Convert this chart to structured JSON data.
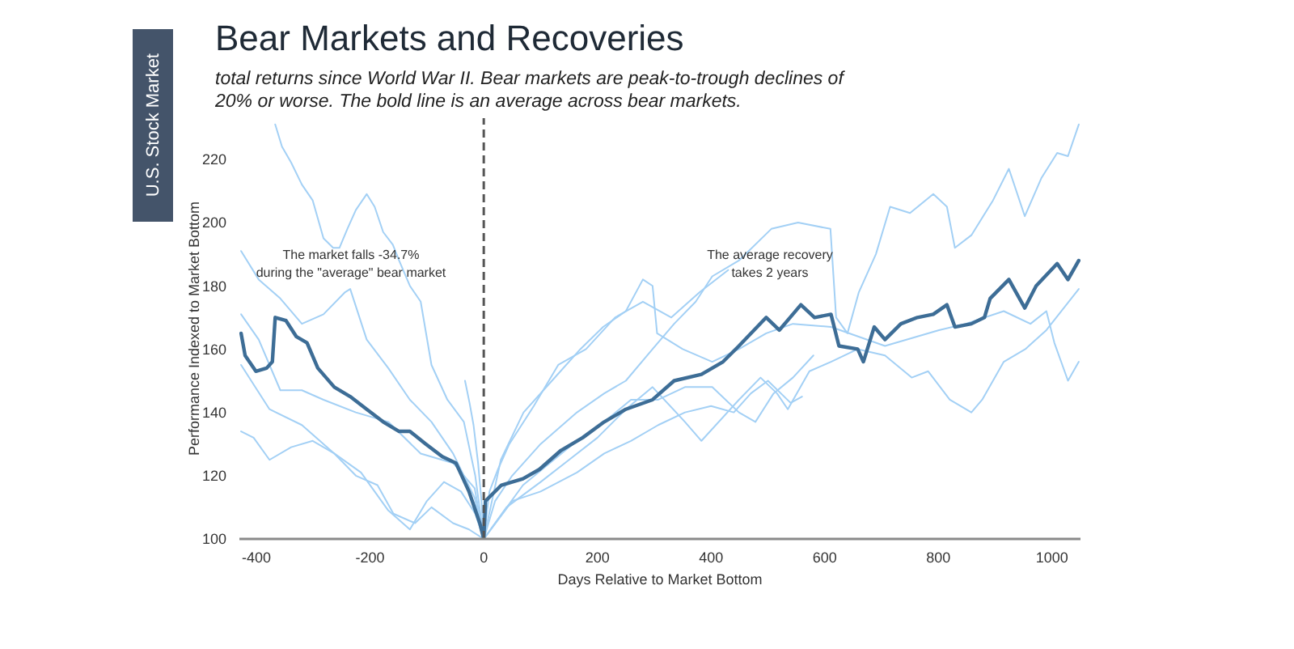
{
  "chart_data": {
    "type": "line",
    "title": "Bear Markets and Recoveries",
    "subtitle": "total returns since World War II. Bear markets are peak-to-trough declines of 20% or worse. The bold line is an average across bear markets.",
    "xlabel": "Days Relative to Market Bottom",
    "ylabel": "Performance Indexed to Market Bottom",
    "xlim": [
      -430,
      1050
    ],
    "xticks": [
      -400,
      -200,
      0,
      200,
      400,
      600,
      800,
      1000
    ],
    "ylim": [
      100,
      233
    ],
    "yticks": [
      100,
      120,
      140,
      160,
      180,
      200,
      220
    ],
    "ref_lines": [
      {
        "axis": "x",
        "value": 0,
        "color": "#555555",
        "line_style": "dashed"
      }
    ],
    "annotations": [
      "U.S. Stock Market",
      "The market falls -34.7%\nduring the \"average\" bear market",
      "The average recovery\ntakes 2 years"
    ],
    "series": [
      {
        "color": "#3d6d96",
        "x": [
          -427,
          -420,
          -401,
          -382,
          -372,
          -367,
          -348,
          -330,
          -311,
          -292,
          -263,
          -235,
          -206,
          -177,
          -149,
          -130,
          -102,
          -73,
          -49,
          -26,
          -7,
          0,
          3,
          31,
          69,
          98,
          136,
          174,
          212,
          250,
          297,
          335,
          383,
          421,
          449,
          497,
          520,
          539,
          558,
          582,
          611,
          625,
          658,
          668,
          687,
          706,
          734,
          763,
          791,
          815,
          829,
          858,
          881,
          891,
          924,
          952,
          972,
          1009,
          1028,
          1047
        ],
        "values": [
          165,
          158,
          153,
          154,
          156,
          170,
          169,
          164,
          162,
          154,
          148,
          145,
          141,
          137,
          134,
          134,
          130,
          126,
          124,
          115,
          105,
          100,
          112,
          117,
          119,
          122,
          128,
          132,
          137,
          141,
          144,
          150,
          152,
          156,
          161,
          170,
          166,
          170,
          174,
          170,
          171,
          161,
          160,
          156,
          167,
          163,
          168,
          170,
          171,
          174,
          167,
          168,
          170,
          176,
          182,
          173,
          180,
          187,
          182,
          188
        ]
      },
      {
        "color": "#a3d0f5",
        "x": [
          -367,
          -355,
          -339,
          -320,
          -301,
          -282,
          -265,
          -254,
          -240,
          -225,
          -206,
          -192,
          -177,
          -160,
          -149,
          -130,
          -111,
          -92,
          -64,
          -35,
          -15,
          0,
          20,
          50,
          100,
          164,
          212,
          250,
          297,
          335,
          373,
          402,
          449,
          506,
          553,
          610,
          620,
          640,
          660,
          690,
          715,
          750,
          791,
          815,
          829,
          858,
          896,
          924,
          952,
          981,
          1009,
          1028,
          1047
        ],
        "values": [
          231,
          224,
          219,
          212,
          207,
          195,
          192,
          192,
          198,
          204,
          209,
          205,
          197,
          193,
          188,
          180,
          175,
          155,
          144,
          137,
          120,
          100,
          112,
          120,
          130,
          140,
          146,
          150,
          160,
          168,
          175,
          183,
          188,
          198,
          200,
          198,
          170,
          165,
          178,
          190,
          205,
          203,
          209,
          205,
          192,
          196,
          207,
          217,
          202,
          214,
          222,
          221,
          231
        ]
      },
      {
        "color": "#a3d0f5",
        "x": [
          -427,
          -396,
          -358,
          -320,
          -282,
          -244,
          -235,
          -206,
          -168,
          -130,
          -92,
          -54,
          -16,
          0,
          30,
          70,
          120,
          170,
          210,
          250,
          280,
          297,
          305,
          350,
          402,
          449,
          497,
          544,
          611,
          706,
          801,
          848,
          915,
          962,
          990,
          1004,
          1028,
          1047
        ],
        "values": [
          191,
          182,
          176,
          168,
          171,
          178,
          179,
          163,
          154,
          144,
          137,
          127,
          113,
          100,
          125,
          140,
          150,
          160,
          167,
          172,
          182,
          180,
          165,
          160,
          156,
          160,
          165,
          168,
          167,
          161,
          166,
          168,
          172,
          168,
          172,
          162,
          150,
          156
        ]
      },
      {
        "color": "#a3d0f5",
        "x": [
          -427,
          -396,
          -358,
          -320,
          -282,
          -225,
          -168,
          -111,
          -54,
          -16,
          0,
          40,
          100,
          150,
          200,
          250,
          297,
          354,
          383,
          449,
          487,
          516,
          535,
          573,
          611,
          658,
          706,
          753,
          782,
          820,
          858,
          877,
          915,
          953,
          990,
          1047
        ],
        "values": [
          171,
          163,
          147,
          147,
          144,
          140,
          137,
          127,
          124,
          116,
          100,
          110,
          118,
          125,
          132,
          141,
          148,
          137,
          131,
          144,
          151,
          146,
          141,
          153,
          156,
          160,
          158,
          151,
          153,
          144,
          140,
          144,
          156,
          160,
          166,
          179
        ]
      },
      {
        "color": "#a3d0f5",
        "x": [
          -427,
          -405,
          -377,
          -339,
          -301,
          -263,
          -225,
          -187,
          -159,
          -121,
          -92,
          -54,
          -26,
          0,
          69,
          164,
          212,
          259,
          307,
          354,
          402,
          449,
          478,
          510,
          544,
          580
        ],
        "values": [
          134,
          132,
          125,
          129,
          131,
          127,
          120,
          117,
          108,
          105,
          110,
          105,
          103,
          100,
          117,
          131,
          137,
          144,
          144,
          148,
          148,
          140,
          137,
          146,
          151,
          158
        ]
      },
      {
        "color": "#a3d0f5",
        "x": [
          -427,
          -377,
          -320,
          -263,
          -216,
          -168,
          -130,
          -100,
          -70,
          -40,
          -15,
          0,
          50,
          100,
          164,
          212,
          259,
          307,
          354,
          400,
          440,
          470,
          500,
          540,
          560
        ],
        "values": [
          155,
          141,
          136,
          127,
          121,
          109,
          103,
          112,
          118,
          115,
          108,
          100,
          112,
          115,
          121,
          127,
          131,
          136,
          140,
          142,
          140,
          146,
          150,
          143,
          145
        ]
      },
      {
        "color": "#a3d0f5",
        "x": [
          -33,
          -25,
          -18,
          -10,
          -4,
          0,
          10,
          25,
          45,
          88,
          131,
          180,
          231,
          280,
          330,
          380,
          430
        ],
        "values": [
          150,
          143,
          136,
          124,
          112,
          100,
          115,
          122,
          130,
          142,
          155,
          160,
          170,
          175,
          170,
          178,
          185
        ]
      }
    ]
  }
}
